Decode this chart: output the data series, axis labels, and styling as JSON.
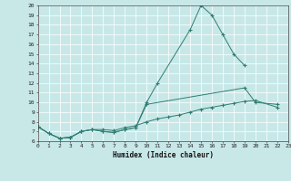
{
  "xlabel": "Humidex (Indice chaleur)",
  "series1_x": [
    0,
    1,
    2,
    3,
    4,
    5,
    6,
    7,
    8,
    9,
    10,
    11,
    14,
    15,
    16,
    17,
    18,
    19
  ],
  "series1_y": [
    7.5,
    6.8,
    6.3,
    6.4,
    7.0,
    7.2,
    7.0,
    6.9,
    7.2,
    7.4,
    10.0,
    12.0,
    17.5,
    20.0,
    19.0,
    17.0,
    15.0,
    13.8
  ],
  "series2_x": [
    0,
    1,
    2,
    3,
    4,
    5,
    6,
    7,
    8,
    9,
    10,
    19,
    20,
    22
  ],
  "series2_y": [
    7.5,
    6.8,
    6.3,
    6.4,
    7.0,
    7.2,
    7.0,
    6.9,
    7.2,
    7.4,
    9.8,
    11.5,
    10.0,
    9.8
  ],
  "series3_x": [
    0,
    1,
    2,
    3,
    4,
    5,
    6,
    7,
    8,
    9,
    10,
    11,
    12,
    13,
    14,
    15,
    16,
    17,
    18,
    19,
    20,
    22
  ],
  "series3_y": [
    7.5,
    6.8,
    6.3,
    6.4,
    7.0,
    7.2,
    7.2,
    7.1,
    7.4,
    7.6,
    8.0,
    8.3,
    8.5,
    8.7,
    9.0,
    9.3,
    9.5,
    9.7,
    9.9,
    10.1,
    10.2,
    9.5
  ],
  "line_color": "#2e7d72",
  "bg_color": "#c8e8e8",
  "grid_color": "#ffffff",
  "ylim": [
    6,
    20
  ],
  "xlim": [
    0,
    23
  ],
  "yticks": [
    6,
    7,
    8,
    9,
    10,
    11,
    12,
    13,
    14,
    15,
    16,
    17,
    18,
    19,
    20
  ],
  "xticks": [
    0,
    1,
    2,
    3,
    4,
    5,
    6,
    7,
    8,
    9,
    10,
    11,
    12,
    13,
    14,
    15,
    16,
    17,
    18,
    19,
    20,
    21,
    22,
    23
  ]
}
